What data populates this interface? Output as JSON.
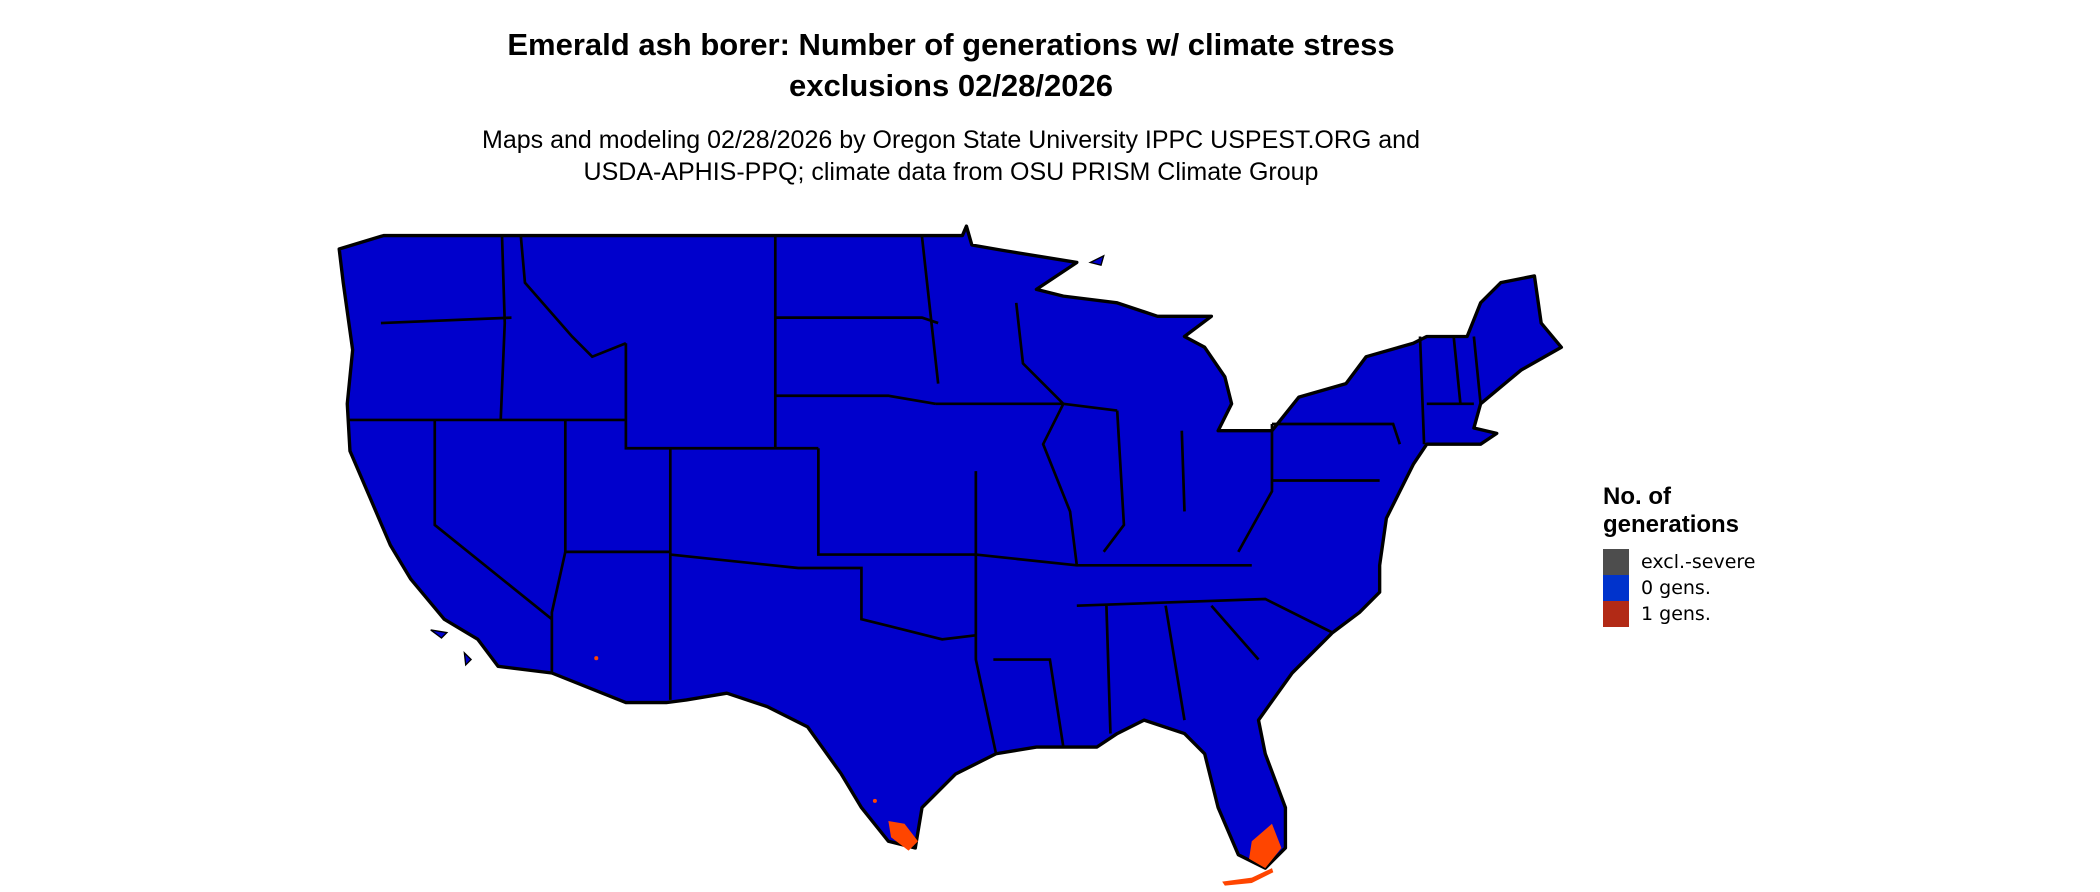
{
  "title": {
    "line1": "Emerald ash borer: Number of generations w/ climate stress",
    "line2": "exclusions 02/28/2026"
  },
  "subtitle": {
    "line1": "Maps and modeling 02/28/2026 by Oregon State University IPPC USPEST.ORG and",
    "line2": "USDA-APHIS-PPQ; climate data from OSU PRISM Climate Group"
  },
  "legend": {
    "title_line1": "No. of",
    "title_line2": "generations",
    "items": [
      {
        "label": "excl.-severe",
        "color": "#4d4d4d"
      },
      {
        "label": "0 gens.",
        "color": "#0033cc"
      },
      {
        "label": "1 gens.",
        "color": "#b22a16"
      }
    ]
  },
  "map": {
    "fill_color": "#0000cc",
    "one_gen_color": "#ff4500",
    "border_color": "#000000"
  }
}
